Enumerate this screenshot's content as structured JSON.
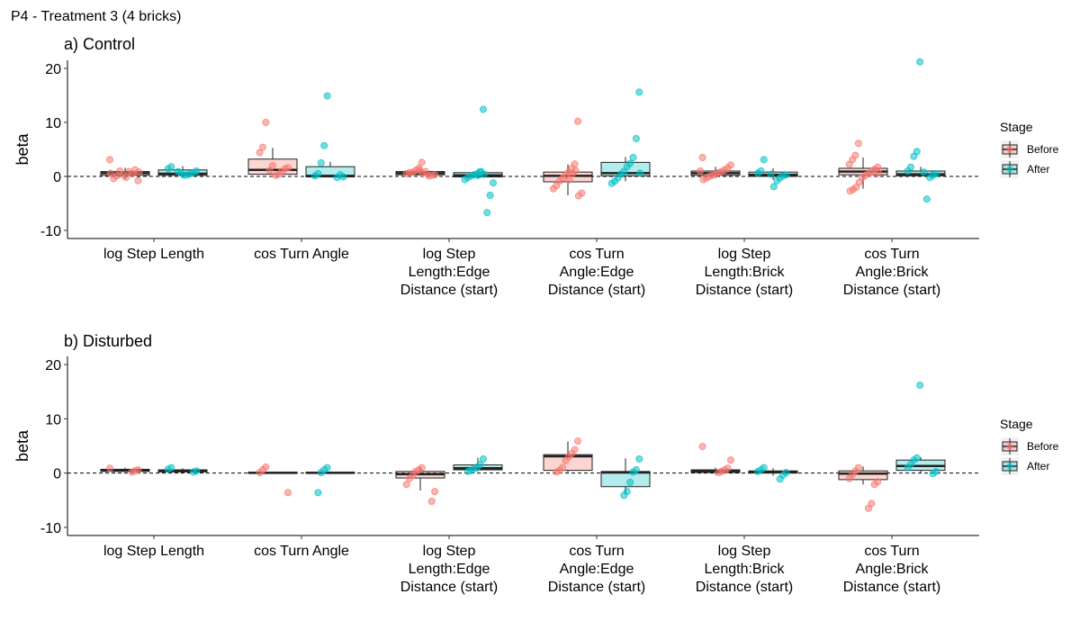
{
  "suptitle": "P4 - Treatment 3 (4 bricks)",
  "colors": {
    "before": "#F8766D",
    "after": "#00BFC4"
  },
  "legend": {
    "title": "Stage",
    "items": [
      "Before",
      "After"
    ]
  },
  "chart_data": [
    {
      "type": "box",
      "title": "a) Control",
      "ylabel": "beta",
      "ylim": [
        -11.5,
        21.5
      ],
      "yticks": [
        -10,
        0,
        10,
        20
      ],
      "reference_line": 0,
      "categories": [
        [
          "log Step Length"
        ],
        [
          "cos Turn Angle"
        ],
        [
          "log Step",
          "Length:Edge",
          "Distance (start)"
        ],
        [
          "cos Turn",
          "Angle:Edge",
          "Distance (start)"
        ],
        [
          "log Step",
          "Length:Brick",
          "Distance (start)"
        ],
        [
          "cos Turn",
          "Angle:Brick",
          "Distance (start)"
        ]
      ],
      "series": [
        {
          "name": "Before",
          "box": [
            {
              "lw": -0.5,
              "q1": 0.2,
              "med": 0.6,
              "q3": 0.9,
              "uw": 1.6
            },
            {
              "lw": 0.2,
              "q1": 0.4,
              "med": 1.2,
              "q3": 3.2,
              "uw": 5.3
            },
            {
              "lw": 0.1,
              "q1": 0.3,
              "med": 0.6,
              "q3": 0.9,
              "uw": 1.5
            },
            {
              "lw": -3.5,
              "q1": -1.0,
              "med": 0.1,
              "q3": 0.8,
              "uw": 2.2
            },
            {
              "lw": -0.3,
              "q1": 0.2,
              "med": 0.6,
              "q3": 1.0,
              "uw": 1.8
            },
            {
              "lw": -2.3,
              "q1": 0.3,
              "med": 0.9,
              "q3": 1.5,
              "uw": 3.5
            }
          ],
          "points": [
            [
              3.1,
              -0.8,
              1.2,
              0.5,
              0.9,
              -0.2,
              0.4,
              1.0,
              0.1,
              -0.4,
              0.6,
              0.8
            ],
            [
              10.0,
              5.4,
              4.4,
              1.6,
              1.4,
              0.9,
              0.4,
              0.2,
              2.0,
              1.1
            ],
            [
              2.6,
              1.5,
              1.1,
              0.8,
              0.7,
              0.5,
              0.3,
              0.2,
              0.1,
              0.9,
              0.6,
              1.2
            ],
            [
              10.2,
              2.3,
              1.5,
              0.8,
              0.2,
              -0.3,
              -0.9,
              -1.7,
              -2.3,
              -3.1,
              -3.6,
              1.1,
              0.5,
              -0.6
            ],
            [
              3.5,
              2.1,
              1.6,
              1.2,
              0.9,
              0.7,
              0.4,
              0.2,
              0.0,
              -0.3,
              -0.6,
              1.0
            ],
            [
              6.1,
              3.9,
              3.1,
              2.2,
              1.7,
              1.3,
              0.9,
              0.5,
              0.2,
              -0.2,
              -1.1,
              -2.0,
              -2.4,
              -2.7,
              0.6
            ]
          ]
        },
        {
          "name": "After",
          "box": [
            {
              "lw": 0.1,
              "q1": 0.2,
              "med": 0.5,
              "q3": 1.2,
              "uw": 1.9
            },
            {
              "lw": -0.2,
              "q1": -0.1,
              "med": 0.1,
              "q3": 1.8,
              "uw": 2.7
            },
            {
              "lw": -0.4,
              "q1": -0.1,
              "med": 0.2,
              "q3": 0.7,
              "uw": 1.4
            },
            {
              "lw": -0.9,
              "q1": 0.1,
              "med": 0.6,
              "q3": 2.6,
              "uw": 3.6
            },
            {
              "lw": -0.6,
              "q1": 0.0,
              "med": 0.3,
              "q3": 0.8,
              "uw": 1.5
            },
            {
              "lw": 0.0,
              "q1": 0.1,
              "med": 0.4,
              "q3": 1.0,
              "uw": 1.8
            }
          ],
          "points": [
            [
              1.8,
              1.4,
              1.0,
              0.7,
              0.5,
              0.3,
              0.2,
              0.6,
              0.9
            ],
            [
              14.9,
              5.7,
              2.5,
              0.5,
              0.1,
              -0.1,
              0.3,
              -0.2
            ],
            [
              12.4,
              0.8,
              0.5,
              0.3,
              0.1,
              -0.2,
              -0.6,
              -1.2,
              -3.5,
              -6.7,
              0.4,
              0.9,
              0.2
            ],
            [
              15.6,
              7.0,
              3.5,
              2.4,
              1.8,
              0.9,
              0.4,
              -0.3,
              -0.9,
              -1.3,
              0.6
            ],
            [
              3.1,
              1.0,
              0.6,
              0.3,
              0.1,
              -0.3,
              -0.8,
              -1.9,
              0.4
            ],
            [
              21.2,
              4.6,
              3.7,
              1.7,
              1.0,
              0.5,
              0.2,
              -0.2,
              -4.2,
              0.8
            ]
          ]
        }
      ]
    },
    {
      "type": "box",
      "title": "b) Disturbed",
      "ylabel": "beta",
      "ylim": [
        -11.5,
        21.5
      ],
      "yticks": [
        -10,
        0,
        10,
        20
      ],
      "reference_line": 0,
      "categories": [
        [
          "log Step Length"
        ],
        [
          "cos Turn Angle"
        ],
        [
          "log Step",
          "Length:Edge",
          "Distance (start)"
        ],
        [
          "cos Turn",
          "Angle:Edge",
          "Distance (start)"
        ],
        [
          "log Step",
          "Length:Brick",
          "Distance (start)"
        ],
        [
          "cos Turn",
          "Angle:Brick",
          "Distance (start)"
        ]
      ],
      "series": [
        {
          "name": "Before",
          "box": [
            {
              "lw": 0.2,
              "q1": 0.3,
              "med": 0.5,
              "q3": 0.7,
              "uw": 1.0
            },
            {
              "lw": -0.1,
              "q1": 0.0,
              "med": 0.05,
              "q3": 0.15,
              "uw": 0.3
            },
            {
              "lw": -3.2,
              "q1": -0.9,
              "med": -0.2,
              "q3": 0.3,
              "uw": 1.0
            },
            {
              "lw": 0.0,
              "q1": 0.5,
              "med": 3.1,
              "q3": 3.4,
              "uw": 5.8
            },
            {
              "lw": -0.3,
              "q1": 0.1,
              "med": 0.4,
              "q3": 0.6,
              "uw": 1.0
            },
            {
              "lw": -2.1,
              "q1": -1.2,
              "med": -0.1,
              "q3": 0.4,
              "uw": 1.2
            }
          ],
          "points": [
            [
              0.9,
              0.6,
              0.4,
              0.2
            ],
            [
              1.1,
              0.6,
              0.1,
              -3.6
            ],
            [
              1.0,
              0.6,
              0.3,
              -0.4,
              -1.0,
              -2.1,
              -3.4,
              -5.2
            ],
            [
              5.9,
              4.3,
              3.6,
              3.0,
              2.3,
              1.0,
              0.5,
              0.2
            ],
            [
              4.9,
              2.4,
              0.9,
              0.6,
              0.3,
              0.1
            ],
            [
              1.0,
              0.4,
              -0.3,
              -1.0,
              -1.6,
              -2.1,
              -5.6,
              -6.5
            ]
          ]
        },
        {
          "name": "After",
          "box": [
            {
              "lw": 0.1,
              "q1": 0.2,
              "med": 0.4,
              "q3": 0.6,
              "uw": 0.9
            },
            {
              "lw": -0.1,
              "q1": 0.0,
              "med": 0.05,
              "q3": 0.15,
              "uw": 0.3
            },
            {
              "lw": 0.3,
              "q1": 0.6,
              "med": 0.9,
              "q3": 1.5,
              "uw": 2.8
            },
            {
              "lw": -3.8,
              "q1": -2.5,
              "med": 0.1,
              "q3": 0.3,
              "uw": 2.7
            },
            {
              "lw": -0.5,
              "q1": 0.0,
              "med": 0.2,
              "q3": 0.4,
              "uw": 0.9
            },
            {
              "lw": 0.1,
              "q1": 0.5,
              "med": 1.3,
              "q3": 2.4,
              "uw": 2.9
            }
          ],
          "points": [
            [
              1.0,
              0.7,
              0.4,
              0.2
            ],
            [
              1.0,
              0.6,
              0.1,
              -3.6
            ],
            [
              2.6,
              1.6,
              1.1,
              0.8,
              0.5,
              0.3
            ],
            [
              2.6,
              0.6,
              0.2,
              -1.7,
              -3.4,
              -4.1
            ],
            [
              1.0,
              0.6,
              0.3,
              0.1,
              -0.4,
              -1.1
            ],
            [
              16.2,
              2.8,
              2.4,
              1.6,
              1.0,
              0.3,
              -0.1
            ]
          ]
        }
      ]
    }
  ]
}
